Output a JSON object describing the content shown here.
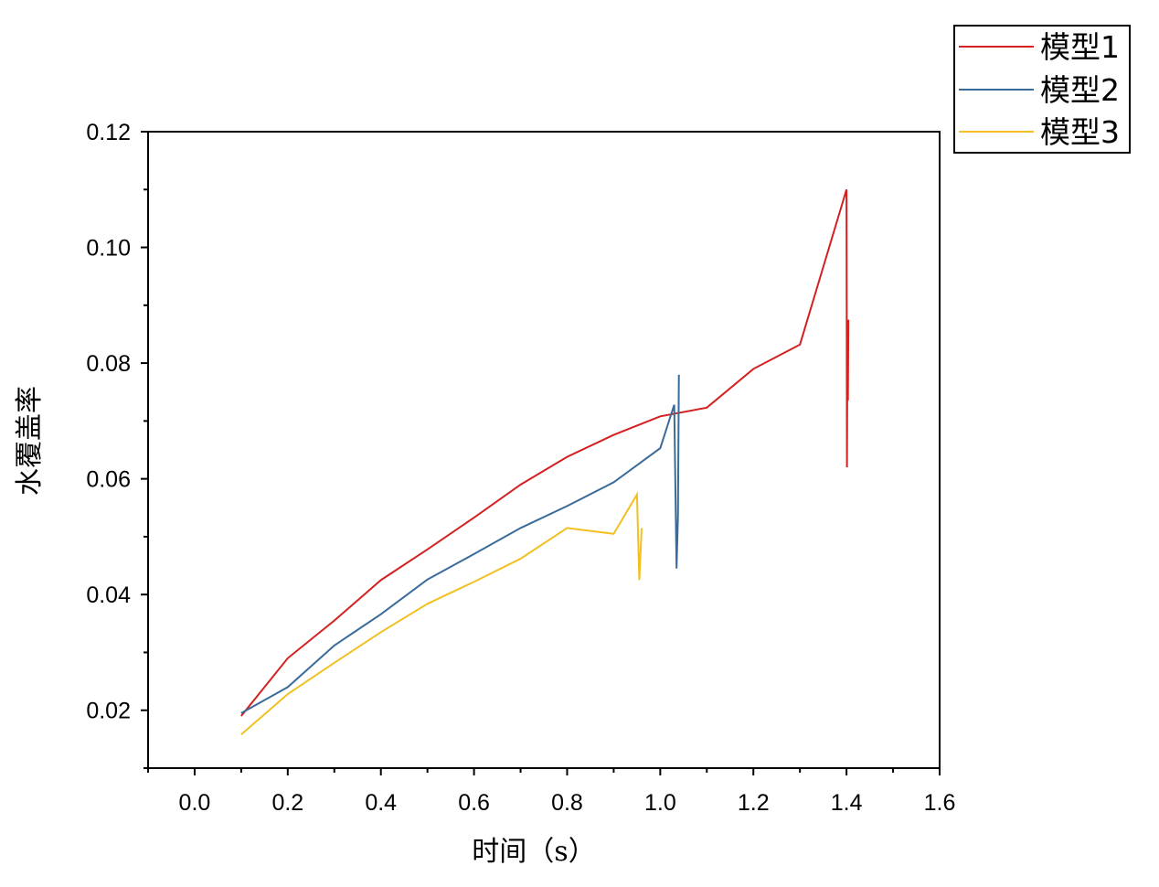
{
  "chart_data": {
    "type": "line",
    "title": "",
    "xlabel": "时间（s）",
    "ylabel": "水覆盖率",
    "xlim": [
      -0.1,
      1.6
    ],
    "ylim": [
      0.01,
      0.12
    ],
    "xticks": [
      0.0,
      0.2,
      0.4,
      0.6,
      0.8,
      1.0,
      1.2,
      1.4,
      1.6
    ],
    "xtick_labels": [
      "0.0",
      "0.2",
      "0.4",
      "0.6",
      "0.8",
      "1.0",
      "1.2",
      "1.4",
      "1.6"
    ],
    "yticks": [
      0.02,
      0.04,
      0.06,
      0.08,
      0.1,
      0.12
    ],
    "ytick_labels": [
      "0.02",
      "0.04",
      "0.06",
      "0.08",
      "0.10",
      "0.12"
    ],
    "grid": false,
    "legend_position": "outside-top-right",
    "series": [
      {
        "name": "模型1",
        "color": "#d42020",
        "x": [
          0.1,
          0.2,
          0.3,
          0.4,
          0.5,
          0.6,
          0.7,
          0.8,
          0.9,
          1.0,
          1.1,
          1.2,
          1.3,
          1.4,
          1.401,
          1.402,
          1.403,
          1.404
        ],
        "y": [
          0.019,
          0.029,
          0.0355,
          0.0425,
          0.0478,
          0.0533,
          0.059,
          0.0638,
          0.0676,
          0.0708,
          0.0723,
          0.079,
          0.0832,
          0.11,
          0.062,
          0.087,
          0.0735,
          0.0875
        ]
      },
      {
        "name": "模型2",
        "color": "#3a6b9a",
        "x": [
          0.1,
          0.2,
          0.3,
          0.4,
          0.5,
          0.6,
          0.7,
          0.8,
          0.9,
          1.0,
          1.03,
          1.035,
          1.038,
          1.04
        ],
        "y": [
          0.0195,
          0.024,
          0.0312,
          0.0366,
          0.0426,
          0.047,
          0.0515,
          0.0553,
          0.0594,
          0.0653,
          0.0728,
          0.0445,
          0.0535,
          0.078
        ]
      },
      {
        "name": "模型3",
        "color": "#f2c023",
        "x": [
          0.1,
          0.2,
          0.3,
          0.4,
          0.5,
          0.6,
          0.7,
          0.8,
          0.9,
          0.95,
          0.955,
          0.96
        ],
        "y": [
          0.0158,
          0.0228,
          0.0282,
          0.0335,
          0.0384,
          0.0422,
          0.0462,
          0.0515,
          0.0505,
          0.0573,
          0.0425,
          0.0515
        ]
      }
    ]
  }
}
